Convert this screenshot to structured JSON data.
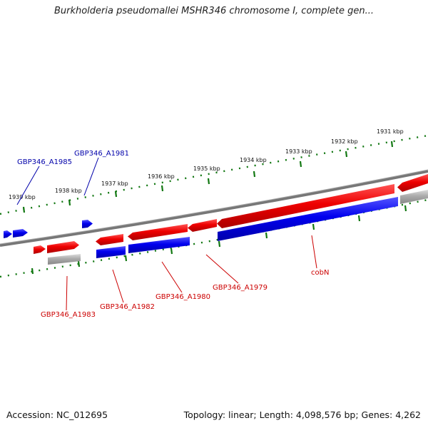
{
  "title": "Burkholderia pseudomallei MSHR346 chromosome I, complete gen...",
  "footer": {
    "accession": "Accession: NC_012695",
    "summary": "Topology: linear; Length: 4,098,576 bp; Genes: 4,262"
  },
  "colors": {
    "forward_gene": "#ee0000",
    "reverse_gene": "#0000ee",
    "pseudo_gene": "#aaaaaa",
    "backbone": "#777777",
    "ticks": "#117711",
    "label_red": "#cc0000",
    "label_blue": "#0000aa"
  },
  "ruler": {
    "ticks": [
      {
        "label": "1939 kbp"
      },
      {
        "label": "1938 kbp"
      },
      {
        "label": "1937 kbp"
      },
      {
        "label": "1936 kbp"
      },
      {
        "label": "1935 kbp"
      },
      {
        "label": "1934 kbp"
      },
      {
        "label": "1933 kbp"
      },
      {
        "label": "1932 kbp"
      },
      {
        "label": "1931 kbp"
      }
    ]
  },
  "gene_labels": [
    {
      "name": "GBP346_A1985",
      "strand": "reverse"
    },
    {
      "name": "GBP346_A1981",
      "strand": "reverse"
    },
    {
      "name": "GBP346_A1983",
      "strand": "forward"
    },
    {
      "name": "GBP346_A1982",
      "strand": "forward"
    },
    {
      "name": "GBP346_A1980",
      "strand": "forward"
    },
    {
      "name": "GBP346_A1979",
      "strand": "forward"
    },
    {
      "name": "cobN",
      "strand": "forward"
    }
  ]
}
